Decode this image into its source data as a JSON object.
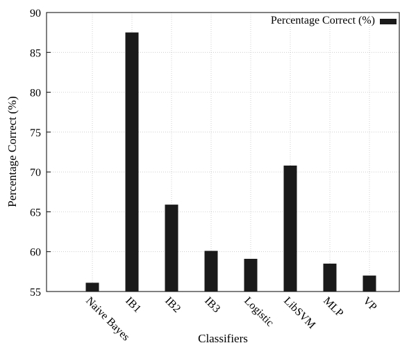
{
  "chart_data": {
    "type": "bar",
    "categories": [
      "Naive Bayes",
      "IB1",
      "IB2",
      "IB3",
      "Logistic",
      "LibSVM",
      "MLP",
      "VP"
    ],
    "series": [
      {
        "name": "Percentage Correct (%)",
        "values": [
          56.1,
          87.5,
          65.9,
          60.1,
          59.1,
          70.8,
          58.5,
          57.0
        ]
      }
    ],
    "xlabel": "Classifiers",
    "ylabel": "Percentage Correct (%)",
    "ylim": [
      55,
      90
    ],
    "yticks": [
      "55",
      "60",
      "65",
      "70",
      "75",
      "80",
      "85",
      "90"
    ],
    "grid": true,
    "legend_position": "top-right",
    "bar_color": "#1a1a1a"
  }
}
